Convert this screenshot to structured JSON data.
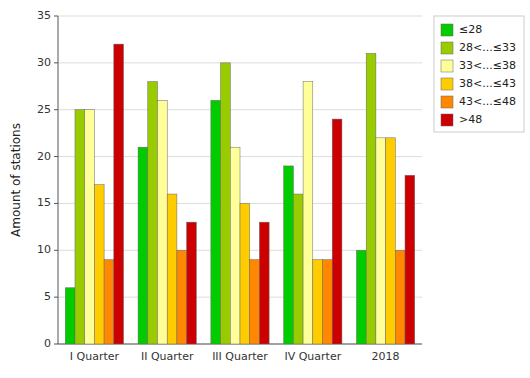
{
  "chart_data": {
    "type": "bar",
    "categories": [
      "I Quarter",
      "II Quarter",
      "III Quarter",
      "IV Quarter",
      "2018"
    ],
    "series": [
      {
        "name": "≤28",
        "color": "#00cc00",
        "values": [
          6,
          21,
          26,
          19,
          10
        ]
      },
      {
        "name": "28<...≤33",
        "color": "#99cc00",
        "values": [
          25,
          28,
          30,
          16,
          31
        ]
      },
      {
        "name": "33<...≤38",
        "color": "#ffff99",
        "values": [
          25,
          26,
          21,
          28,
          22
        ]
      },
      {
        "name": "38<...≤43",
        "color": "#ffcc00",
        "values": [
          17,
          16,
          15,
          9,
          22
        ]
      },
      {
        "name": "43<...≤48",
        "color": "#ff8800",
        "values": [
          9,
          10,
          9,
          9,
          10
        ]
      },
      {
        "name": ">48",
        "color": "#cc0000",
        "values": [
          32,
          13,
          13,
          24,
          18
        ]
      }
    ],
    "ylabel": "Amount of stations",
    "ylim": [
      0,
      35
    ],
    "yticks": [
      0,
      5,
      10,
      15,
      20,
      25,
      30,
      35
    ],
    "grid": true,
    "legend": "upper right"
  }
}
